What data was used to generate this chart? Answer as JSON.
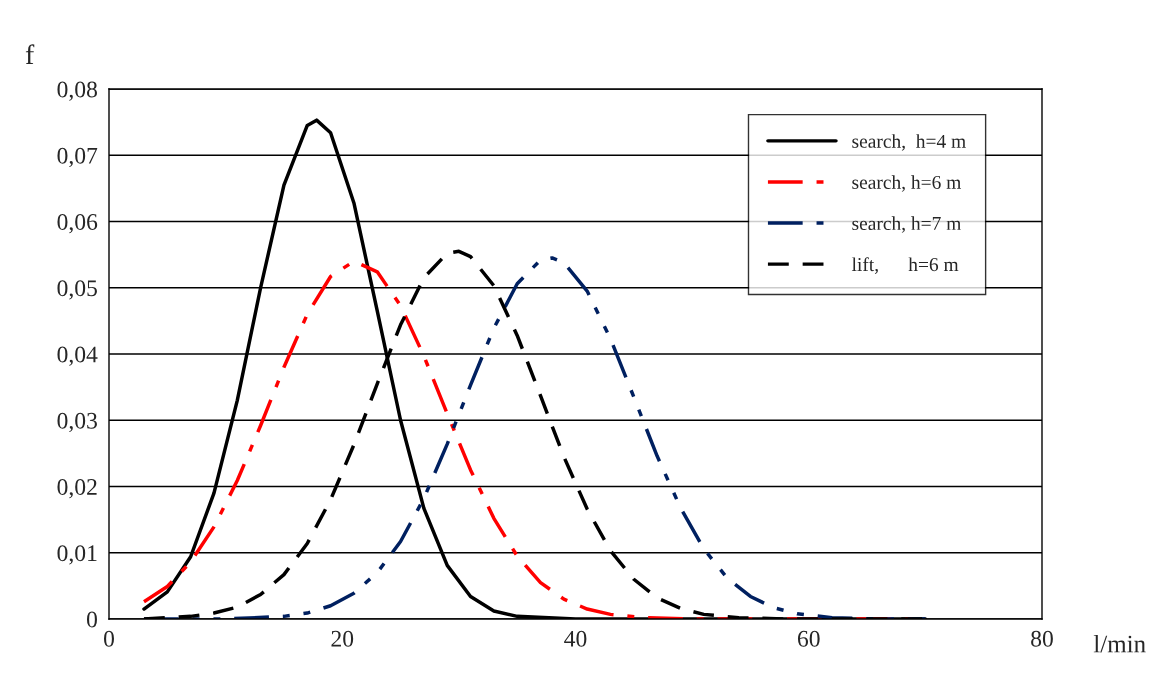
{
  "chart_data": {
    "type": "line",
    "ylabel": "f",
    "xlabel": "l/min",
    "xlim": [
      0,
      80
    ],
    "xticks": [
      0,
      20,
      40,
      60,
      80
    ],
    "ylim": [
      0,
      0.08
    ],
    "yticks": [
      {
        "value": 0,
        "label": "0"
      },
      {
        "value": 0.01,
        "label": "0,01"
      },
      {
        "value": 0.02,
        "label": "0,02"
      },
      {
        "value": 0.03,
        "label": "0,03"
      },
      {
        "value": 0.04,
        "label": "0,04"
      },
      {
        "value": 0.05,
        "label": "0,05"
      },
      {
        "value": 0.06,
        "label": "0,06"
      },
      {
        "value": 0.07,
        "label": "0,07"
      },
      {
        "value": 0.08,
        "label": "0,08"
      }
    ],
    "grid": "y",
    "legend": "top right",
    "marker": "none",
    "series": [
      {
        "name": "search,  h=4 m",
        "color": "#000000",
        "line_style": "solid",
        "x": [
          3,
          5,
          7,
          9,
          11,
          13,
          15,
          17,
          17.8,
          19,
          21,
          23,
          25,
          27,
          29,
          31,
          33,
          35,
          40,
          50,
          60,
          70
        ],
        "values": [
          0.0015,
          0.0041,
          0.0094,
          0.019,
          0.033,
          0.05,
          0.0655,
          0.0745,
          0.0753,
          0.0734,
          0.0628,
          0.0465,
          0.03,
          0.0167,
          0.0081,
          0.0034,
          0.0012,
          0.0004,
          0,
          0,
          0,
          0
        ]
      },
      {
        "name": "search, h=6 m",
        "color": "#ff0000",
        "line_style": "dashdot",
        "x": [
          3,
          5,
          7,
          9,
          11,
          13,
          15,
          17,
          19,
          21,
          23,
          25,
          27,
          29,
          31,
          33,
          35,
          37,
          39,
          41,
          43,
          46,
          50,
          60,
          70
        ],
        "values": [
          0.0026,
          0.0049,
          0.0086,
          0.0139,
          0.0209,
          0.0292,
          0.038,
          0.046,
          0.0517,
          0.054,
          0.0524,
          0.0473,
          0.0397,
          0.031,
          0.0225,
          0.0152,
          0.0095,
          0.0055,
          0.003,
          0.0015,
          0.0007,
          0.0002,
          0,
          0,
          0
        ]
      },
      {
        "name": "search, h=7 m",
        "color": "#002060",
        "line_style": "dashdotdot",
        "x": [
          3,
          10,
          15,
          17,
          19,
          21,
          23,
          25,
          27,
          29,
          31,
          33,
          35,
          37,
          38,
          39,
          41,
          43,
          45,
          47,
          49,
          51,
          53,
          55,
          57,
          59,
          62,
          66,
          70
        ],
        "values": [
          0,
          0,
          0.0004,
          0.0009,
          0.002,
          0.0039,
          0.007,
          0.0117,
          0.0182,
          0.0264,
          0.0353,
          0.0439,
          0.0506,
          0.0542,
          0.0545,
          0.0538,
          0.0495,
          0.0423,
          0.0335,
          0.0246,
          0.0168,
          0.0106,
          0.0062,
          0.0034,
          0.0017,
          0.0008,
          0.0002,
          0,
          0
        ]
      },
      {
        "name": "lift,      h=6 m",
        "color": "#000000",
        "line_style": "dashed",
        "x": [
          3,
          7,
          9,
          11,
          13,
          15,
          17,
          19,
          21,
          23,
          25,
          27,
          29,
          30,
          31,
          33,
          35,
          37,
          39,
          41,
          43,
          45,
          47,
          49,
          51,
          54,
          58,
          70
        ],
        "values": [
          0,
          0.0004,
          0.0009,
          0.0018,
          0.0037,
          0.0067,
          0.0114,
          0.018,
          0.0263,
          0.0355,
          0.0444,
          0.0515,
          0.0552,
          0.0555,
          0.0547,
          0.0503,
          0.0428,
          0.0337,
          0.0245,
          0.0166,
          0.0103,
          0.006,
          0.0032,
          0.0016,
          0.0007,
          0.0002,
          0,
          0
        ]
      }
    ]
  }
}
